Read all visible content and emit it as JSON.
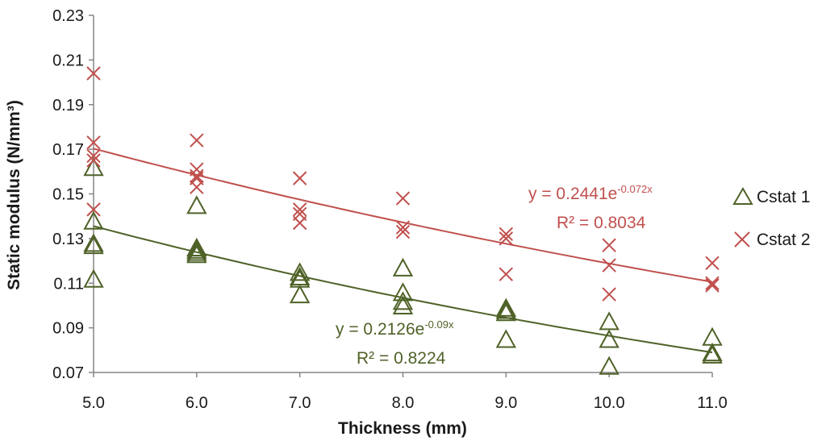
{
  "chart_data": {
    "type": "scatter",
    "title": "",
    "xlabel": "Thickness (mm)",
    "ylabel": "Static modulus (N/mm³)",
    "xlim": [
      5.0,
      11.0
    ],
    "ylim": [
      0.07,
      0.23
    ],
    "x_ticks": [
      "5.0",
      "6.0",
      "7.0",
      "8.0",
      "9.0",
      "10.0",
      "11.0"
    ],
    "y_ticks": [
      "0.07",
      "0.09",
      "0.11",
      "0.13",
      "0.15",
      "0.17",
      "0.19",
      "0.21",
      "0.23"
    ],
    "legend_position": "right",
    "series": [
      {
        "name": "Cstat 1",
        "marker": "triangle",
        "color": "#4f6228",
        "points": [
          [
            5.0,
            0.162
          ],
          [
            5.0,
            0.138
          ],
          [
            5.0,
            0.128
          ],
          [
            5.0,
            0.127
          ],
          [
            5.0,
            0.112
          ],
          [
            6.0,
            0.145
          ],
          [
            6.0,
            0.126
          ],
          [
            6.0,
            0.125
          ],
          [
            6.0,
            0.124
          ],
          [
            6.0,
            0.123
          ],
          [
            7.0,
            0.115
          ],
          [
            7.0,
            0.113
          ],
          [
            7.0,
            0.112
          ],
          [
            7.0,
            0.105
          ],
          [
            8.0,
            0.117
          ],
          [
            8.0,
            0.106
          ],
          [
            8.0,
            0.102
          ],
          [
            8.0,
            0.1
          ],
          [
            9.0,
            0.099
          ],
          [
            9.0,
            0.098
          ],
          [
            9.0,
            0.097
          ],
          [
            9.0,
            0.085
          ],
          [
            10.0,
            0.093
          ],
          [
            10.0,
            0.085
          ],
          [
            10.0,
            0.073
          ],
          [
            11.0,
            0.086
          ],
          [
            11.0,
            0.079
          ],
          [
            11.0,
            0.078
          ]
        ],
        "trendline": {
          "a": 0.2126,
          "b": -0.09,
          "equation_text": "y = 0.2126e",
          "equation_exponent": "-0.09x",
          "r2_text": "R² = 0.8224"
        }
      },
      {
        "name": "Cstat 2",
        "marker": "x",
        "color": "#c0504d",
        "points": [
          [
            5.0,
            0.204
          ],
          [
            5.0,
            0.173
          ],
          [
            5.0,
            0.167
          ],
          [
            5.0,
            0.165
          ],
          [
            5.0,
            0.143
          ],
          [
            6.0,
            0.174
          ],
          [
            6.0,
            0.161
          ],
          [
            6.0,
            0.158
          ],
          [
            6.0,
            0.157
          ],
          [
            6.0,
            0.153
          ],
          [
            7.0,
            0.157
          ],
          [
            7.0,
            0.143
          ],
          [
            7.0,
            0.141
          ],
          [
            7.0,
            0.137
          ],
          [
            8.0,
            0.148
          ],
          [
            8.0,
            0.135
          ],
          [
            8.0,
            0.133
          ],
          [
            9.0,
            0.132
          ],
          [
            9.0,
            0.13
          ],
          [
            9.0,
            0.114
          ],
          [
            10.0,
            0.127
          ],
          [
            10.0,
            0.118
          ],
          [
            10.0,
            0.105
          ],
          [
            11.0,
            0.119
          ],
          [
            11.0,
            0.11
          ],
          [
            11.0,
            0.109
          ]
        ],
        "trendline": {
          "a": 0.2441,
          "b": -0.072,
          "equation_text": "y = 0.2441e",
          "equation_exponent": "-0.072x",
          "r2_text": "R² = 0.8034"
        }
      }
    ]
  }
}
